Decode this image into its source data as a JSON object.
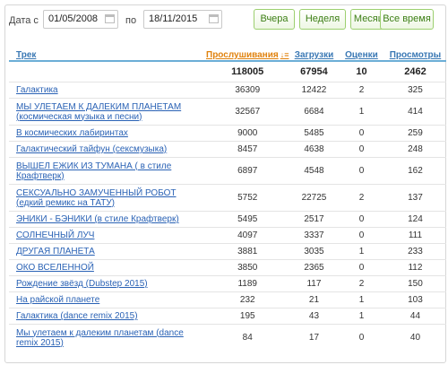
{
  "filter": {
    "date_from_label": "Дата с",
    "date_from": "01/05/2008",
    "date_to_label": "по",
    "date_to": "18/11/2015",
    "buttons": [
      "Вчера",
      "Неделя",
      "Месяц",
      "Все время"
    ]
  },
  "table": {
    "headers": {
      "track": "Трек",
      "plays": "Прослушивания",
      "downloads": "Загрузки",
      "ratings": "Оценки",
      "views": "Просмотры"
    },
    "totals": {
      "plays": "118005",
      "downloads": "67954",
      "ratings": "10",
      "views": "2462"
    },
    "rows": [
      {
        "title": "Галактика",
        "plays": "36309",
        "downloads": "12422",
        "ratings": "2",
        "views": "325"
      },
      {
        "title": "МЫ УЛЕТАЕМ К ДАЛЕКИМ ПЛАНЕТАМ (космическая музыка и песни)",
        "plays": "32567",
        "downloads": "6684",
        "ratings": "1",
        "views": "414"
      },
      {
        "title": "В космических лабиринтах",
        "plays": "9000",
        "downloads": "5485",
        "ratings": "0",
        "views": "259"
      },
      {
        "title": "Галактический тайфун (сексмузыка)",
        "plays": "8457",
        "downloads": "4638",
        "ratings": "0",
        "views": "248"
      },
      {
        "title": "ВЫШЕЛ ЕЖИК ИЗ ТУМАНА ( в стиле Крафтверк)",
        "plays": "6897",
        "downloads": "4548",
        "ratings": "0",
        "views": "162"
      },
      {
        "title": "СЕКСУАЛЬНО ЗАМУЧЕННЫЙ РОБОТ (едкий ремикс на ТАТУ)",
        "plays": "5752",
        "downloads": "22725",
        "ratings": "2",
        "views": "137"
      },
      {
        "title": "ЭНИКИ - БЭНИКИ (в стиле Крафтверк)",
        "plays": "5495",
        "downloads": "2517",
        "ratings": "0",
        "views": "124"
      },
      {
        "title": "СОЛНЕЧНЫЙ ЛУЧ",
        "plays": "4097",
        "downloads": "3337",
        "ratings": "0",
        "views": "111"
      },
      {
        "title": "ДРУГАЯ ПЛАНЕТА",
        "plays": "3881",
        "downloads": "3035",
        "ratings": "1",
        "views": "233"
      },
      {
        "title": "ОКО ВСЕЛЕННОЙ",
        "plays": "3850",
        "downloads": "2365",
        "ratings": "0",
        "views": "112"
      },
      {
        "title": "Рождение звёзд (Dubstep 2015)",
        "plays": "1189",
        "downloads": "117",
        "ratings": "2",
        "views": "150"
      },
      {
        "title": "На райской планете",
        "plays": "232",
        "downloads": "21",
        "ratings": "1",
        "views": "103"
      },
      {
        "title": "Галактика (dance remix 2015)",
        "plays": "195",
        "downloads": "43",
        "ratings": "1",
        "views": "44"
      },
      {
        "title": "Мы улетаем к далеким планетам (dance remix 2015)",
        "plays": "84",
        "downloads": "17",
        "ratings": "0",
        "views": "40"
      }
    ]
  }
}
